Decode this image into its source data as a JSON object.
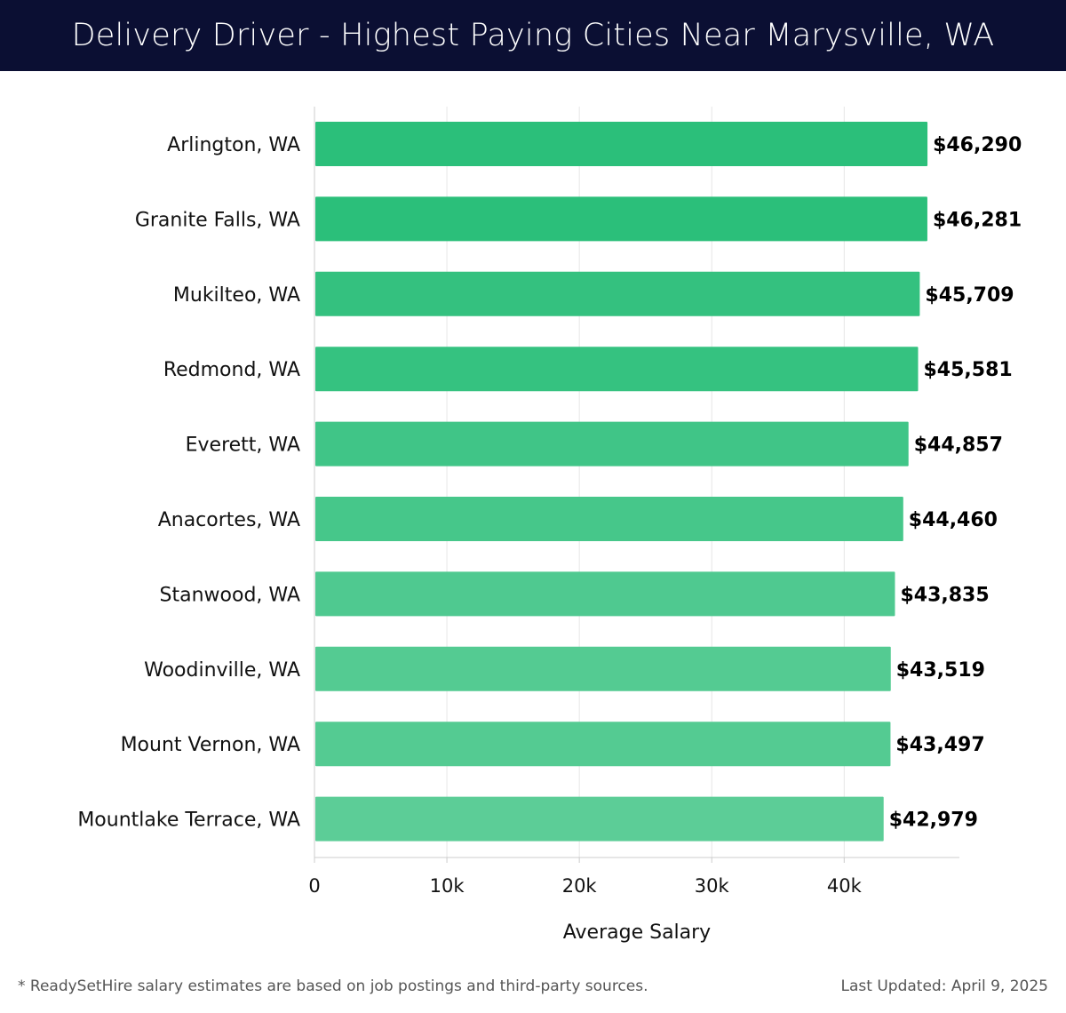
{
  "header": {
    "title": "Delivery Driver - Highest Paying Cities Near Marysville, WA"
  },
  "chart_data": {
    "type": "bar",
    "orientation": "horizontal",
    "categories": [
      "Arlington, WA",
      "Granite Falls, WA",
      "Mukilteo, WA",
      "Redmond, WA",
      "Everett, WA",
      "Anacortes, WA",
      "Stanwood, WA",
      "Woodinville, WA",
      "Mount Vernon, WA",
      "Mountlake Terrace, WA"
    ],
    "values": [
      46290,
      46281,
      45709,
      45581,
      44857,
      44460,
      43835,
      43519,
      43497,
      42979
    ],
    "value_labels": [
      "$46,290",
      "$46,281",
      "$45,709",
      "$45,581",
      "$44,857",
      "$44,460",
      "$43,835",
      "$43,519",
      "$43,497",
      "$42,979"
    ],
    "xlabel": "Average Salary",
    "ylabel": "",
    "xlim": [
      0,
      48700
    ],
    "xticks": [
      0,
      10000,
      20000,
      30000,
      40000
    ],
    "xtick_labels": [
      "0",
      "10k",
      "20k",
      "30k",
      "40k"
    ],
    "grid": true,
    "colors": {
      "high": "#2bbf7a",
      "low": "#5ccd97",
      "grid": "#e6e6e6",
      "axis": "#cccccc"
    }
  },
  "footer": {
    "note": "* ReadySetHire salary estimates are based on job postings and third-party sources.",
    "updated": "Last Updated: April 9, 2025"
  }
}
